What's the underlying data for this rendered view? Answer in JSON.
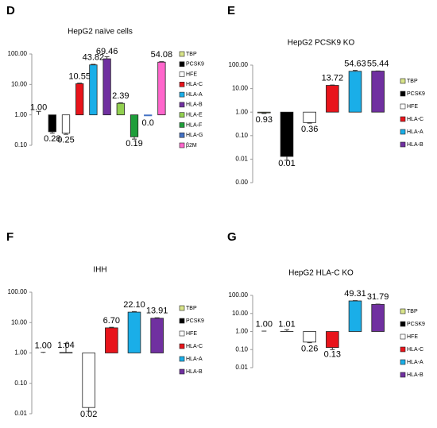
{
  "chart_data": [
    {
      "type": "bar",
      "panel": "D",
      "title": "HepG2 naïve cells",
      "log_scale": true,
      "categories": [
        "TBP",
        "PCSK9",
        "HFE",
        "HLA-C",
        "HLA-A",
        "HLA-B",
        "HLA-E",
        "HLA-F",
        "HLA-G",
        "β2M"
      ],
      "values": [
        1.0,
        0.28,
        0.25,
        10.55,
        43.82,
        69.46,
        2.39,
        0.19,
        0,
        54.08
      ],
      "value_labels": [
        "1.00",
        "0.28",
        "0.25",
        "10.55",
        "43.82",
        "69.46",
        "2.39",
        "0.19",
        "0.0",
        "54.08"
      ],
      "errors": [
        0.3,
        0.03,
        0.02,
        0.5,
        2,
        12,
        0.1,
        0.03,
        0,
        2
      ],
      "colors": [
        "#d9e58a",
        "#000000",
        "#ffffff",
        "#e8141b",
        "#1aaee8",
        "#7030a0",
        "#92d050",
        "#1e9e3a",
        "#4472c4",
        "#ff66cc"
      ],
      "ylim": [
        0.1,
        100
      ],
      "yticks": [
        {
          "value": 0.1,
          "label": "0.10"
        },
        {
          "value": 1,
          "label": "1.00"
        },
        {
          "value": 10,
          "label": "10.00"
        },
        {
          "value": 100,
          "label": "100.00"
        }
      ]
    },
    {
      "type": "bar",
      "panel": "E",
      "title": "HepG2 PCSK9 KO",
      "log_scale": true,
      "categories": [
        "TBP",
        "PCSK9",
        "HFE",
        "HLA-C",
        "HLA-A",
        "HLA-B"
      ],
      "values": [
        0.93,
        0.013,
        0.36,
        13.72,
        54.63,
        55.44
      ],
      "value_labels": [
        "0.93",
        "0.01",
        "0.36",
        "13.72",
        "54.63",
        "55.44"
      ],
      "errors": [
        0.05,
        0.004,
        0.02,
        0.5,
        5,
        1
      ],
      "colors": [
        "#d9e58a",
        "#000000",
        "#ffffff",
        "#e8141b",
        "#1aaee8",
        "#7030a0"
      ],
      "ylim": [
        0.001,
        100
      ],
      "yticks": [
        {
          "value": 0.001,
          "label": "0.00"
        },
        {
          "value": 0.01,
          "label": "0.01"
        },
        {
          "value": 0.1,
          "label": "0.10"
        },
        {
          "value": 1,
          "label": "1.00"
        },
        {
          "value": 10,
          "label": "10.00"
        },
        {
          "value": 100,
          "label": "100.00"
        }
      ]
    },
    {
      "type": "bar",
      "panel": "F",
      "title": "IHH",
      "log_scale": true,
      "categories": [
        "TBP",
        "PCSK9",
        "HFE",
        "HLA-C",
        "HLA-A",
        "HLA-B"
      ],
      "values": [
        1.0,
        1.04,
        0.016,
        6.7,
        22.1,
        13.91
      ],
      "value_labels": [
        "1.00",
        "1.04",
        "0.02",
        "6.70",
        "22.10",
        "13.91"
      ],
      "errors": [
        0.05,
        1.0,
        0.004,
        0.3,
        1,
        0.5
      ],
      "colors": [
        "#d9e58a",
        "#000000",
        "#ffffff",
        "#e8141b",
        "#1aaee8",
        "#7030a0"
      ],
      "ylim": [
        0.01,
        100
      ],
      "yticks": [
        {
          "value": 0.01,
          "label": "0.01"
        },
        {
          "value": 0.1,
          "label": "0.10"
        },
        {
          "value": 1,
          "label": "1.00"
        },
        {
          "value": 10,
          "label": "10.00"
        },
        {
          "value": 100,
          "label": "100.00"
        }
      ]
    },
    {
      "type": "bar",
      "panel": "G",
      "title": "HepG2 HLA-C KO",
      "log_scale": true,
      "categories": [
        "TBP",
        "PCSK9",
        "HFE",
        "HLA-C",
        "HLA-A",
        "HLA-B"
      ],
      "values": [
        1.0,
        1.01,
        0.26,
        0.13,
        49.31,
        31.79
      ],
      "value_labels": [
        "1.00",
        "1.01",
        "0.26",
        "0.13",
        "49.31",
        "31.79"
      ],
      "errors": [
        0.05,
        0.25,
        0.02,
        0.03,
        2,
        1
      ],
      "colors": [
        "#d9e58a",
        "#000000",
        "#ffffff",
        "#e8141b",
        "#1aaee8",
        "#7030a0"
      ],
      "ylim": [
        0.01,
        100
      ],
      "yticks": [
        {
          "value": 0.01,
          "label": "0.01"
        },
        {
          "value": 0.1,
          "label": "0.10"
        },
        {
          "value": 1,
          "label": "1.00"
        },
        {
          "value": 10,
          "label": "10.00"
        },
        {
          "value": 100,
          "label": "100.00"
        }
      ]
    }
  ]
}
